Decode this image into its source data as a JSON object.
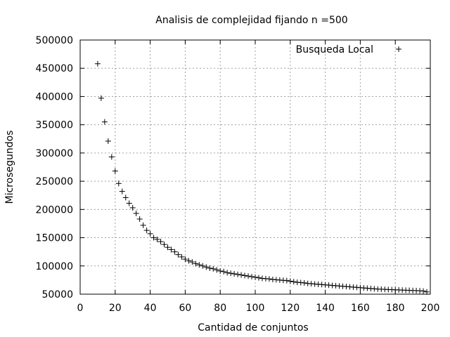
{
  "chart_data": {
    "type": "scatter",
    "title": "Analisis de complejidad fijando n =500",
    "xlabel": "Cantidad de conjuntos",
    "ylabel": "Microsegundos",
    "xlim": [
      0,
      200
    ],
    "ylim": [
      50000,
      500000
    ],
    "xticks": [
      "0",
      "20",
      "40",
      "60",
      "80",
      "100",
      "120",
      "140",
      "160",
      "180",
      "200"
    ],
    "yticks": [
      "50000",
      "100000",
      "150000",
      "200000",
      "250000",
      "300000",
      "350000",
      "400000",
      "450000",
      "500000"
    ],
    "grid": true,
    "legend_position": "top-right",
    "marker": "+",
    "series": [
      {
        "name": "Busqueda Local",
        "x": [
          10,
          12,
          14,
          16,
          18,
          20,
          22,
          24,
          26,
          28,
          30,
          32,
          34,
          36,
          38,
          40,
          42,
          44,
          46,
          48,
          50,
          52,
          54,
          56,
          58,
          60,
          62,
          64,
          66,
          68,
          70,
          72,
          74,
          76,
          78,
          80,
          82,
          84,
          86,
          88,
          90,
          92,
          94,
          96,
          98,
          100,
          102,
          104,
          106,
          108,
          110,
          112,
          114,
          116,
          118,
          120,
          122,
          124,
          126,
          128,
          130,
          132,
          134,
          136,
          138,
          140,
          142,
          144,
          146,
          148,
          150,
          152,
          154,
          156,
          158,
          160,
          162,
          164,
          166,
          168,
          170,
          172,
          174,
          176,
          178,
          180,
          182,
          184,
          186,
          188,
          190,
          192,
          194,
          196,
          198
        ],
        "y": [
          458000,
          397000,
          355000,
          321000,
          293000,
          268000,
          246000,
          232000,
          221000,
          211000,
          203000,
          193000,
          183000,
          172000,
          163000,
          157000,
          150000,
          147000,
          143000,
          138000,
          133000,
          129000,
          125000,
          120000,
          116000,
          112000,
          109000,
          107000,
          104000,
          102000,
          100000,
          98000,
          96000,
          95000,
          93000,
          91000,
          90000,
          88000,
          87000,
          86000,
          85000,
          84000,
          83000,
          82000,
          81000,
          80000,
          79000,
          78000,
          77500,
          77000,
          76000,
          75500,
          75000,
          74500,
          74000,
          73000,
          72000,
          71000,
          70500,
          70000,
          69000,
          68500,
          68000,
          67500,
          67000,
          66500,
          66000,
          65500,
          65000,
          64500,
          64000,
          63500,
          63000,
          62500,
          62000,
          61500,
          61000,
          60500,
          60000,
          59500,
          59000,
          58800,
          58500,
          58200,
          58000,
          57800,
          57500,
          57200,
          57000,
          56800,
          56500,
          56300,
          56000,
          55500,
          54000
        ]
      }
    ]
  }
}
